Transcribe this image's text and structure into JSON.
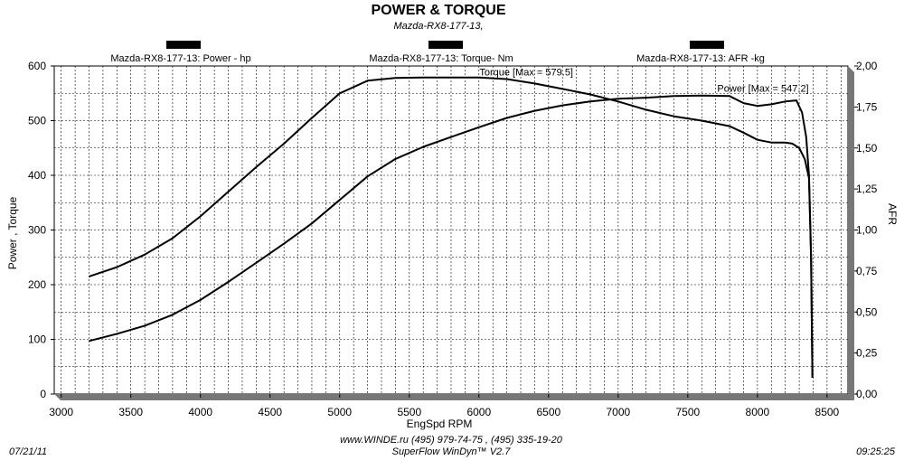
{
  "header": {
    "title": "POWER & TORQUE",
    "subtitle": "Mazda-RX8-177-13,"
  },
  "footer": {
    "date": "07/21/11",
    "site": "www.WINDE.ru  (495) 979-74-75 , (495) 335-19-20",
    "software": "SuperFlow WinDyn™ V2.7",
    "time": "09:25:25"
  },
  "chart_data": {
    "type": "line",
    "xlabel": "EngSpd  RPM",
    "ylabel": "Power , Torque",
    "y2label": "AFR",
    "xlim": [
      2950,
      8650
    ],
    "ylim": [
      0,
      600
    ],
    "y2lim": [
      0,
      2.0
    ],
    "x_ticks": [
      "3000",
      "3500",
      "4000",
      "4500",
      "5000",
      "5500",
      "6000",
      "6500",
      "7000",
      "7500",
      "8000",
      "8500"
    ],
    "y_ticks": [
      "0",
      "100",
      "200",
      "300",
      "400",
      "500",
      "600"
    ],
    "y2_ticks": [
      "0,00",
      "0,25",
      "0,50",
      "0,75",
      "1,00",
      "1,25",
      "1,50",
      "1,75",
      "2,00"
    ],
    "grid": true,
    "legend": [
      {
        "label": "Mazda-RX8-177-13: Power -  hp"
      },
      {
        "label": "Mazda-RX8-177-13: Torque-  Nm"
      },
      {
        "label": "Mazda-RX8-177-13: AFR   -kg"
      }
    ],
    "series": [
      {
        "name": "Power",
        "x": [
          3200,
          3400,
          3600,
          3800,
          4000,
          4200,
          4400,
          4600,
          4800,
          5000,
          5200,
          5400,
          5600,
          5800,
          6000,
          6200,
          6400,
          6600,
          6800,
          7000,
          7200,
          7400,
          7600,
          7800,
          7900,
          8000,
          8100,
          8200,
          8280,
          8320,
          8350,
          8370,
          8385,
          8395
        ],
        "y": [
          97,
          110,
          125,
          145,
          172,
          205,
          240,
          275,
          312,
          355,
          398,
          430,
          452,
          470,
          488,
          505,
          518,
          528,
          535,
          540,
          542,
          545,
          546,
          545,
          532,
          527,
          530,
          535,
          537,
          515,
          470,
          400,
          250,
          30
        ]
      },
      {
        "name": "Torque",
        "x": [
          3200,
          3400,
          3600,
          3800,
          4000,
          4200,
          4400,
          4600,
          4800,
          5000,
          5200,
          5400,
          5600,
          5800,
          6000,
          6200,
          6400,
          6600,
          6800,
          7000,
          7200,
          7400,
          7600,
          7800,
          7900,
          8000,
          8100,
          8200,
          8250,
          8300,
          8340,
          8370,
          8385,
          8395
        ],
        "y": [
          215,
          232,
          255,
          285,
          325,
          370,
          415,
          458,
          505,
          550,
          573,
          578,
          579,
          579,
          579,
          576,
          568,
          558,
          548,
          535,
          520,
          508,
          500,
          490,
          478,
          465,
          460,
          460,
          458,
          450,
          430,
          395,
          250,
          30
        ]
      }
    ],
    "annotations": [
      {
        "text": "Torque [Max = 579.5]",
        "x": 6340,
        "y": 583
      },
      {
        "text": "Power  [Max = 547.2]",
        "x": 8040,
        "y": 553
      }
    ],
    "colors": {
      "line": "#000000",
      "grid": "#000000",
      "background": "#ffffff"
    }
  }
}
